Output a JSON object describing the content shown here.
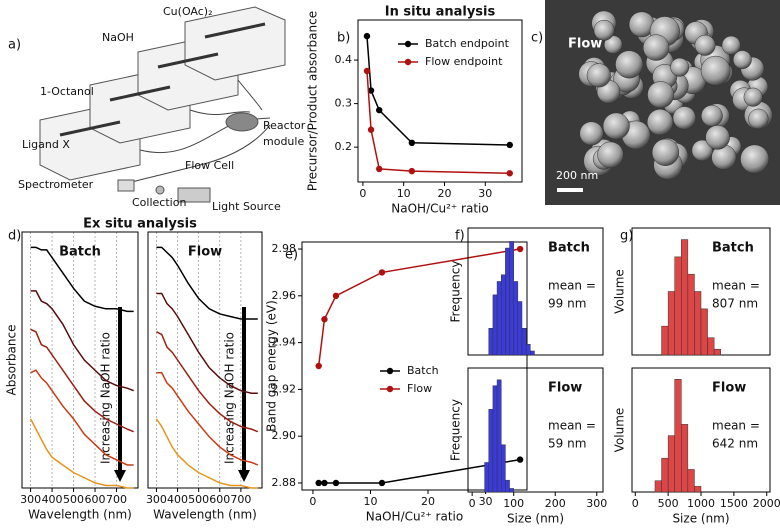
{
  "headings": [
    "In situ analysis",
    "Ex situ analysis"
  ],
  "diagram": {
    "panel": "a)",
    "labels": [
      "Cu(OAc)₂",
      "NaOH",
      "1-Octanol",
      "Ligand X",
      "Flow Cell",
      "Spectrometer",
      "Collection",
      "Light Source"
    ],
    "reactor": [
      "Reactor",
      "module"
    ]
  },
  "sem_image": {
    "panel": "c)",
    "label": "Flow",
    "scale_bar": "200 nm"
  },
  "chart_data": [
    {
      "type": "line",
      "panel": "b)",
      "xlabel": "NaOH/Cu²⁺ ratio",
      "ylabel": "Precursor/Product absorbance",
      "x": [
        1,
        2,
        4,
        12,
        36
      ],
      "xlim": [
        -1.2,
        39
      ],
      "ylim": [
        0.12,
        0.492
      ],
      "xticks": [
        0,
        10,
        20,
        30
      ],
      "yticks": [
        0.2,
        0.3,
        0.4
      ],
      "markers": true,
      "legend": "upper right",
      "series": [
        {
          "name": "Batch endpoint",
          "color": "#000000",
          "values": [
            0.455,
            0.33,
            0.285,
            0.21,
            0.205
          ]
        },
        {
          "name": "Flow endpoint",
          "color": "#b01010",
          "values": [
            0.375,
            0.24,
            0.15,
            0.145,
            0.14
          ]
        }
      ]
    },
    {
      "type": "line",
      "panel": "d)",
      "inner_title": "Batch",
      "xlabel": "Wavelength (nm)",
      "ylabel": "Absorbance",
      "arrow_label": "Increasing NaOH ratio",
      "x": [
        300,
        325,
        350,
        375,
        400,
        450,
        500,
        550,
        600,
        650,
        700,
        750,
        780
      ],
      "xlim": [
        260,
        800
      ],
      "ylim": [
        0,
        1
      ],
      "xticks": [
        300,
        400,
        500,
        600,
        700
      ],
      "grid": true,
      "series": [
        {
          "color": "#000000",
          "values": [
            0.94,
            0.94,
            0.93,
            0.93,
            0.9,
            0.84,
            0.78,
            0.73,
            0.71,
            0.7,
            0.7,
            0.69,
            0.69
          ]
        },
        {
          "color": "#5a0d0d",
          "values": [
            0.77,
            0.77,
            0.73,
            0.72,
            0.7,
            0.64,
            0.56,
            0.5,
            0.46,
            0.42,
            0.4,
            0.39,
            0.38
          ]
        },
        {
          "color": "#9a2010",
          "values": [
            0.62,
            0.61,
            0.56,
            0.55,
            0.52,
            0.46,
            0.4,
            0.34,
            0.3,
            0.27,
            0.25,
            0.23,
            0.22
          ]
        },
        {
          "color": "#c83c14",
          "values": [
            0.45,
            0.46,
            0.43,
            0.41,
            0.38,
            0.32,
            0.27,
            0.21,
            0.17,
            0.13,
            0.11,
            0.09,
            0.09
          ]
        },
        {
          "color": "#e8941c",
          "values": [
            0.27,
            0.23,
            0.19,
            0.15,
            0.12,
            0.09,
            0.06,
            0.04,
            0.02,
            0.01,
            0.01,
            0,
            0
          ]
        }
      ]
    },
    {
      "type": "line",
      "inner_title": "Flow",
      "xlabel": "Wavelength (nm)",
      "arrow_label": "Increasing NaOH ratio",
      "x": [
        300,
        325,
        350,
        375,
        400,
        450,
        500,
        550,
        600,
        650,
        700,
        750,
        780
      ],
      "xlim": [
        260,
        800
      ],
      "ylim": [
        0,
        1
      ],
      "xticks": [
        300,
        400,
        500,
        600,
        700
      ],
      "grid": true,
      "series": [
        {
          "color": "#000000",
          "values": [
            0.94,
            0.94,
            0.92,
            0.9,
            0.87,
            0.8,
            0.74,
            0.7,
            0.68,
            0.67,
            0.66,
            0.66,
            0.66
          ]
        },
        {
          "color": "#5a0d0d",
          "values": [
            0.76,
            0.76,
            0.72,
            0.7,
            0.67,
            0.6,
            0.53,
            0.47,
            0.43,
            0.4,
            0.38,
            0.37,
            0.37
          ]
        },
        {
          "color": "#9a2010",
          "values": [
            0.61,
            0.6,
            0.55,
            0.53,
            0.5,
            0.44,
            0.38,
            0.33,
            0.29,
            0.26,
            0.24,
            0.23,
            0.22
          ]
        },
        {
          "color": "#c83c14",
          "values": [
            0.45,
            0.45,
            0.41,
            0.39,
            0.36,
            0.3,
            0.25,
            0.2,
            0.16,
            0.13,
            0.11,
            0.1,
            0.09
          ]
        },
        {
          "color": "#e8941c",
          "values": [
            0.27,
            0.24,
            0.2,
            0.16,
            0.13,
            0.09,
            0.06,
            0.04,
            0.02,
            0.01,
            0.01,
            0,
            0
          ]
        }
      ]
    },
    {
      "type": "line",
      "panel": "e)",
      "xlabel": "NaOH/Cu²⁺ ratio",
      "ylabel": "Band gap energy (eV)",
      "x": [
        1,
        2,
        4,
        12,
        36
      ],
      "xlim": [
        -1.9,
        37.2
      ],
      "ylim": [
        2.877,
        2.983
      ],
      "xticks": [
        0,
        10,
        20,
        30
      ],
      "yticks": [
        {
          "value": 2.88,
          "label": "2.88"
        },
        {
          "value": 2.9,
          "label": "2.90"
        },
        {
          "value": 2.92,
          "label": "2.92"
        },
        {
          "value": 2.94,
          "label": "2.94"
        },
        {
          "value": 2.96,
          "label": "2.96"
        },
        {
          "value": 2.98,
          "label": "2.98"
        }
      ],
      "markers": true,
      "legend": "center right",
      "series": [
        {
          "name": "Batch",
          "color": "#000000",
          "values": [
            2.88,
            2.88,
            2.88,
            2.88,
            2.89
          ]
        },
        {
          "name": "Flow",
          "color": "#b01010",
          "values": [
            2.93,
            2.95,
            2.96,
            2.97,
            2.98
          ]
        }
      ]
    },
    {
      "type": "histogram",
      "panel": "f)",
      "inner_title": "Batch",
      "annotation": [
        "mean =",
        "99 nm"
      ],
      "ylabel": "Frequency",
      "color": "#3b3bdc",
      "bins": [
        40,
        50,
        60,
        70,
        80,
        90,
        100,
        110,
        120,
        130,
        140,
        150
      ],
      "counts": [
        20,
        45,
        55,
        60,
        80,
        85,
        55,
        40,
        20,
        8,
        3
      ],
      "xlim": [
        -10,
        315
      ],
      "ylim": [
        0,
        95
      ]
    },
    {
      "type": "histogram",
      "inner_title": "Flow",
      "annotation": [
        "mean =",
        "59 nm"
      ],
      "ylabel": "Frequency",
      "xlabel": "Size (nm)",
      "color": "#3b3bdc",
      "bins": [
        30,
        40,
        50,
        60,
        70,
        80,
        90,
        100
      ],
      "counts": [
        25,
        70,
        90,
        95,
        40,
        10,
        3
      ],
      "xlim": [
        -10,
        315
      ],
      "ylim": [
        0,
        105
      ],
      "xticks": [
        0,
        100,
        200,
        300
      ]
    },
    {
      "type": "histogram",
      "panel": "g)",
      "inner_title": "Batch",
      "annotation": [
        "mean =",
        "807 nm"
      ],
      "ylabel": "Volume",
      "color": "#dc4646",
      "bins": [
        400,
        500,
        600,
        700,
        800,
        900,
        1000,
        1100,
        1200,
        1300
      ],
      "counts": [
        25,
        55,
        85,
        100,
        70,
        55,
        40,
        15,
        5
      ],
      "xlim": [
        -50,
        2050
      ],
      "ylim": [
        0,
        110
      ]
    },
    {
      "type": "histogram",
      "inner_title": "Flow",
      "annotation": [
        "mean =",
        "642 nm"
      ],
      "ylabel": "Volume",
      "xlabel": "Size (nm)",
      "color": "#dc4646",
      "bins": [
        300,
        400,
        500,
        600,
        700,
        800,
        900,
        1000
      ],
      "counts": [
        10,
        30,
        50,
        100,
        60,
        20,
        5
      ],
      "xlim": [
        -50,
        2050
      ],
      "ylim": [
        0,
        110
      ],
      "xticks": [
        0,
        500,
        1000,
        1500,
        2000
      ]
    }
  ]
}
